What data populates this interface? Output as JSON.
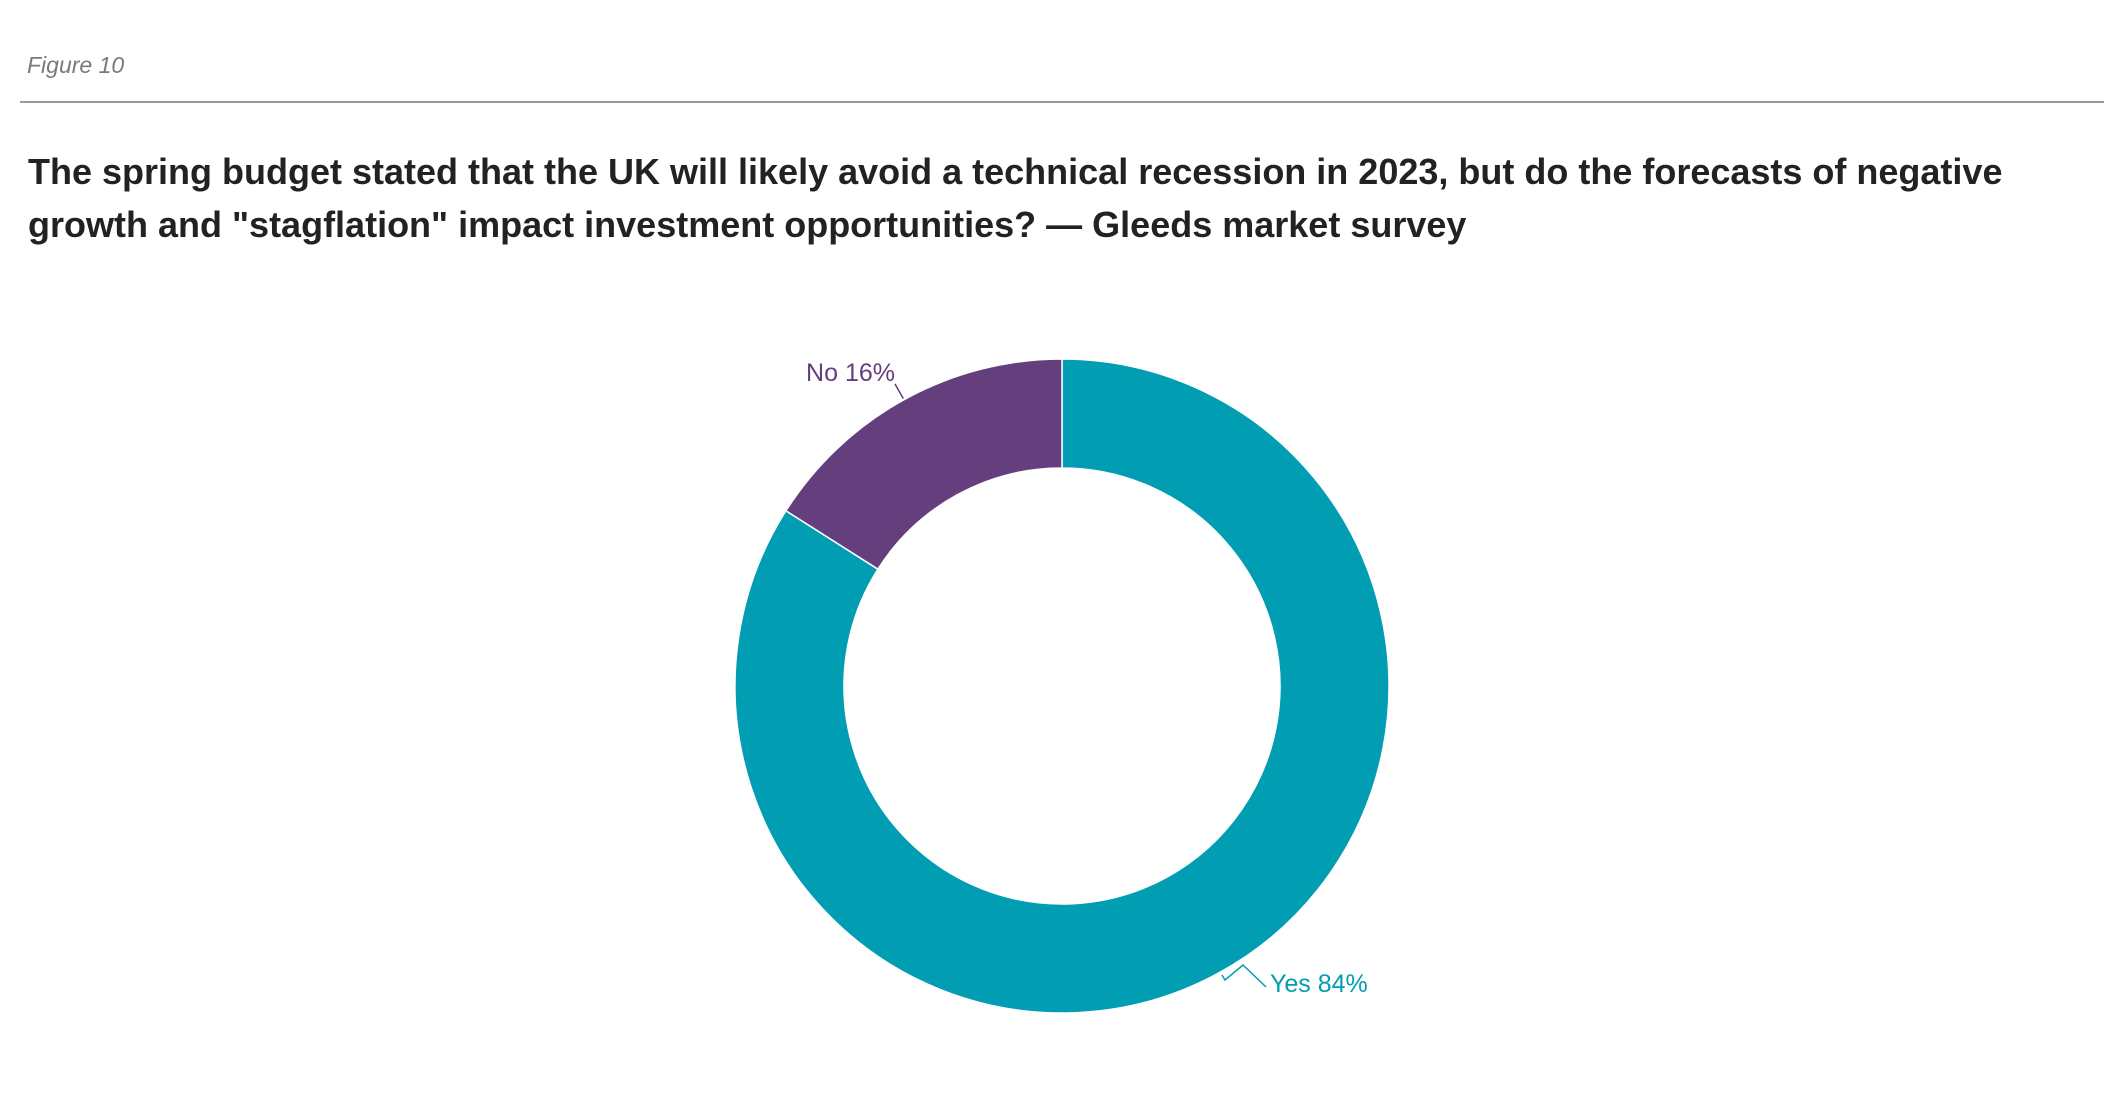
{
  "figure_label": "Figure 10",
  "chart_data": {
    "type": "pie",
    "title": "The spring budget stated that the UK will likely avoid a technical recession in 2023, but do the forecasts of negative growth and \"stagflation\" impact investment opportunities? — Gleeds market survey",
    "categories": [
      "No",
      "Yes"
    ],
    "values": [
      16,
      84
    ],
    "unit": "%",
    "donut": true,
    "start": "top, clockwise from Yes",
    "legend": "none",
    "slices": [
      {
        "name": "Yes",
        "value": 84,
        "label": "Yes 84%",
        "color": "#009DB3"
      },
      {
        "name": "No",
        "value": 16,
        "label": "No 16%",
        "color": "#653F7D"
      }
    ]
  },
  "colors": {
    "background": "#FFFFFF",
    "title": "#222222",
    "figure_label": "#7A7A7A",
    "rule": "#9A9A9A"
  }
}
